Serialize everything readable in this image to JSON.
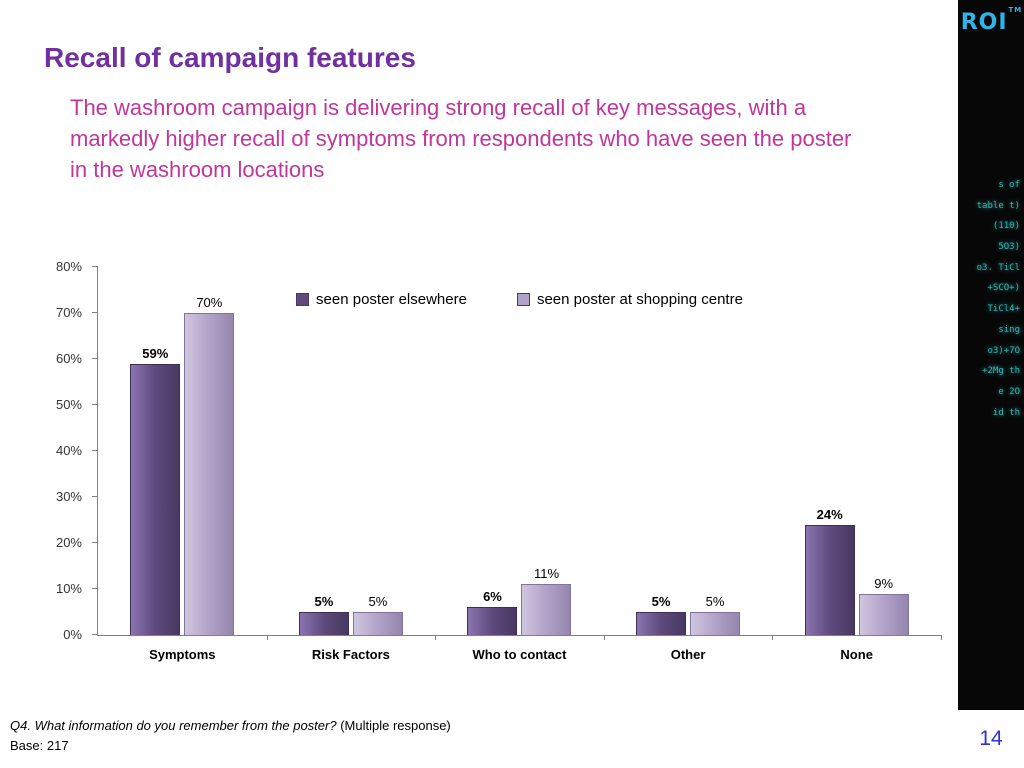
{
  "slide": {
    "title": "Recall of campaign features",
    "subtitle": "The washroom campaign is delivering strong recall of key messages, with a markedly higher recall of symptoms from respondents who have seen the poster in the washroom locations",
    "footnote_question": "Q4. What information do you remember from the poster?",
    "footnote_note": " (Multiple response)",
    "base_text": "Base: 217",
    "page_number": "14"
  },
  "sidebar": {
    "logo_text": "ROI",
    "logo_tm": "TM",
    "decor_lines": [
      "s of",
      "table t)",
      "(110)",
      "5O3)",
      "o3. TiCl",
      "+SCO+)",
      "TiCl4+",
      "sing",
      "o3)+7O",
      "+2Mg th",
      "e 2O",
      "id th"
    ]
  },
  "chart_data": {
    "type": "bar",
    "title": "",
    "categories": [
      "Symptoms",
      "Risk Factors",
      "Who to contact",
      "Other",
      "None"
    ],
    "series": [
      {
        "name": "seen poster elsewhere",
        "color": "#604a7b",
        "values": [
          59,
          5,
          6,
          5,
          24
        ]
      },
      {
        "name": "seen poster at shopping centre",
        "color": "#b1a2c8",
        "values": [
          70,
          5,
          11,
          5,
          9
        ]
      }
    ],
    "xlabel": "",
    "ylabel": "",
    "ylim": [
      0,
      80
    ],
    "ytick_step": 10,
    "yticks": [
      "0%",
      "10%",
      "20%",
      "30%",
      "40%",
      "50%",
      "60%",
      "70%",
      "80%"
    ],
    "data_labels": [
      [
        "59%",
        "5%",
        "6%",
        "5%",
        "24%"
      ],
      [
        "70%",
        "5%",
        "11%",
        "5%",
        "9%"
      ]
    ],
    "legend_position": "top-center-inside",
    "grid": false
  }
}
